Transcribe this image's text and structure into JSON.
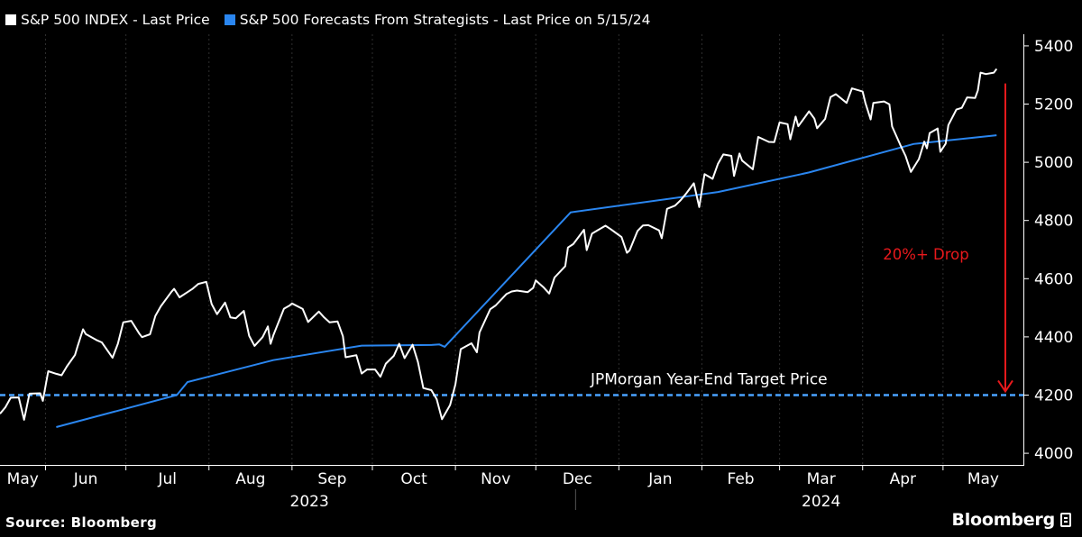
{
  "legend": {
    "items": [
      {
        "label": "S&P 500 INDEX - Last Price",
        "color": "#ffffff"
      },
      {
        "label": "S&P 500 Forecasts From Strategists - Last Price on 5/15/24",
        "color": "#2a86f0"
      }
    ]
  },
  "chart_data": {
    "type": "line",
    "x_axis": {
      "months": [
        "May",
        "Jun",
        "Jul",
        "Aug",
        "Sep",
        "Oct",
        "Nov",
        "Dec",
        "Jan",
        "Feb",
        "Mar",
        "Apr",
        "May"
      ],
      "years": [
        "2023",
        "2024"
      ],
      "range": [
        "2023-05-15",
        "2024-05-31"
      ]
    },
    "y_axis": {
      "ticks": [
        4000,
        4200,
        4400,
        4600,
        4800,
        5000,
        5200,
        5400
      ],
      "ylim": [
        3960,
        5440
      ],
      "position": "right"
    },
    "grid": "vertical dashed",
    "legend_position": "top-left",
    "series": [
      {
        "name": "S&P 500 INDEX - Last Price",
        "color": "#ffffff",
        "points": [
          [
            "2023-05-15",
            4136
          ],
          [
            "2023-05-17",
            4158
          ],
          [
            "2023-05-19",
            4191
          ],
          [
            "2023-05-22",
            4192
          ],
          [
            "2023-05-24",
            4115
          ],
          [
            "2023-05-26",
            4205
          ],
          [
            "2023-05-30",
            4206
          ],
          [
            "2023-05-31",
            4180
          ],
          [
            "2023-06-02",
            4282
          ],
          [
            "2023-06-05",
            4273
          ],
          [
            "2023-06-07",
            4268
          ],
          [
            "2023-06-09",
            4299
          ],
          [
            "2023-06-12",
            4338
          ],
          [
            "2023-06-13",
            4369
          ],
          [
            "2023-06-15",
            4426
          ],
          [
            "2023-06-16",
            4410
          ],
          [
            "2023-06-20",
            4389
          ],
          [
            "2023-06-22",
            4381
          ],
          [
            "2023-06-26",
            4328
          ],
          [
            "2023-06-28",
            4376
          ],
          [
            "2023-06-30",
            4450
          ],
          [
            "2023-07-03",
            4455
          ],
          [
            "2023-07-06",
            4411
          ],
          [
            "2023-07-07",
            4399
          ],
          [
            "2023-07-10",
            4409
          ],
          [
            "2023-07-12",
            4472
          ],
          [
            "2023-07-14",
            4505
          ],
          [
            "2023-07-18",
            4555
          ],
          [
            "2023-07-19",
            4565
          ],
          [
            "2023-07-21",
            4536
          ],
          [
            "2023-07-24",
            4554
          ],
          [
            "2023-07-26",
            4566
          ],
          [
            "2023-07-28",
            4582
          ],
          [
            "2023-07-31",
            4589
          ],
          [
            "2023-08-02",
            4513
          ],
          [
            "2023-08-04",
            4478
          ],
          [
            "2023-08-07",
            4518
          ],
          [
            "2023-08-09",
            4467
          ],
          [
            "2023-08-11",
            4464
          ],
          [
            "2023-08-14",
            4489
          ],
          [
            "2023-08-16",
            4404
          ],
          [
            "2023-08-18",
            4369
          ],
          [
            "2023-08-21",
            4399
          ],
          [
            "2023-08-23",
            4436
          ],
          [
            "2023-08-24",
            4376
          ],
          [
            "2023-08-25",
            4405
          ],
          [
            "2023-08-29",
            4497
          ],
          [
            "2023-08-31",
            4507
          ],
          [
            "2023-09-01",
            4515
          ],
          [
            "2023-09-05",
            4496
          ],
          [
            "2023-09-07",
            4451
          ],
          [
            "2023-09-11",
            4487
          ],
          [
            "2023-09-13",
            4467
          ],
          [
            "2023-09-15",
            4450
          ],
          [
            "2023-09-18",
            4453
          ],
          [
            "2023-09-20",
            4402
          ],
          [
            "2023-09-21",
            4330
          ],
          [
            "2023-09-25",
            4337
          ],
          [
            "2023-09-27",
            4274
          ],
          [
            "2023-09-29",
            4288
          ],
          [
            "2023-10-02",
            4288
          ],
          [
            "2023-10-04",
            4263
          ],
          [
            "2023-10-06",
            4308
          ],
          [
            "2023-10-09",
            4335
          ],
          [
            "2023-10-11",
            4376
          ],
          [
            "2023-10-13",
            4327
          ],
          [
            "2023-10-16",
            4373
          ],
          [
            "2023-10-18",
            4314
          ],
          [
            "2023-10-20",
            4224
          ],
          [
            "2023-10-23",
            4217
          ],
          [
            "2023-10-25",
            4186
          ],
          [
            "2023-10-27",
            4117
          ],
          [
            "2023-10-30",
            4166
          ],
          [
            "2023-11-01",
            4237
          ],
          [
            "2023-11-03",
            4358
          ],
          [
            "2023-11-07",
            4378
          ],
          [
            "2023-11-09",
            4347
          ],
          [
            "2023-11-10",
            4415
          ],
          [
            "2023-11-14",
            4495
          ],
          [
            "2023-11-16",
            4508
          ],
          [
            "2023-11-20",
            4547
          ],
          [
            "2023-11-22",
            4556
          ],
          [
            "2023-11-24",
            4559
          ],
          [
            "2023-11-28",
            4554
          ],
          [
            "2023-11-30",
            4568
          ],
          [
            "2023-12-01",
            4594
          ],
          [
            "2023-12-04",
            4569
          ],
          [
            "2023-12-06",
            4549
          ],
          [
            "2023-12-08",
            4604
          ],
          [
            "2023-12-12",
            4643
          ],
          [
            "2023-12-13",
            4707
          ],
          [
            "2023-12-15",
            4719
          ],
          [
            "2023-12-19",
            4768
          ],
          [
            "2023-12-20",
            4698
          ],
          [
            "2023-12-22",
            4755
          ],
          [
            "2023-12-27",
            4782
          ],
          [
            "2023-12-29",
            4770
          ],
          [
            "2024-01-02",
            4743
          ],
          [
            "2024-01-04",
            4689
          ],
          [
            "2024-01-05",
            4697
          ],
          [
            "2024-01-08",
            4764
          ],
          [
            "2024-01-10",
            4783
          ],
          [
            "2024-01-12",
            4784
          ],
          [
            "2024-01-16",
            4766
          ],
          [
            "2024-01-17",
            4739
          ],
          [
            "2024-01-19",
            4840
          ],
          [
            "2024-01-22",
            4851
          ],
          [
            "2024-01-24",
            4869
          ],
          [
            "2024-01-26",
            4891
          ],
          [
            "2024-01-29",
            4928
          ],
          [
            "2024-01-31",
            4846
          ],
          [
            "2024-02-01",
            4906
          ],
          [
            "2024-02-02",
            4959
          ],
          [
            "2024-02-05",
            4943
          ],
          [
            "2024-02-07",
            4995
          ],
          [
            "2024-02-09",
            5027
          ],
          [
            "2024-02-12",
            5022
          ],
          [
            "2024-02-13",
            4953
          ],
          [
            "2024-02-15",
            5030
          ],
          [
            "2024-02-16",
            5006
          ],
          [
            "2024-02-20",
            4976
          ],
          [
            "2024-02-22",
            5087
          ],
          [
            "2024-02-26",
            5070
          ],
          [
            "2024-02-28",
            5069
          ],
          [
            "2024-03-01",
            5137
          ],
          [
            "2024-03-04",
            5131
          ],
          [
            "2024-03-05",
            5079
          ],
          [
            "2024-03-07",
            5157
          ],
          [
            "2024-03-08",
            5124
          ],
          [
            "2024-03-12",
            5175
          ],
          [
            "2024-03-14",
            5150
          ],
          [
            "2024-03-15",
            5117
          ],
          [
            "2024-03-18",
            5149
          ],
          [
            "2024-03-20",
            5224
          ],
          [
            "2024-03-22",
            5234
          ],
          [
            "2024-03-26",
            5204
          ],
          [
            "2024-03-28",
            5254
          ],
          [
            "2024-04-01",
            5243
          ],
          [
            "2024-04-02",
            5205
          ],
          [
            "2024-04-04",
            5147
          ],
          [
            "2024-04-05",
            5204
          ],
          [
            "2024-04-09",
            5209
          ],
          [
            "2024-04-11",
            5199
          ],
          [
            "2024-04-12",
            5123
          ],
          [
            "2024-04-15",
            5061
          ],
          [
            "2024-04-17",
            5022
          ],
          [
            "2024-04-19",
            4967
          ],
          [
            "2024-04-22",
            5011
          ],
          [
            "2024-04-24",
            5071
          ],
          [
            "2024-04-25",
            5048
          ],
          [
            "2024-04-26",
            5100
          ],
          [
            "2024-04-29",
            5116
          ],
          [
            "2024-04-30",
            5036
          ],
          [
            "2024-05-02",
            5064
          ],
          [
            "2024-05-03",
            5128
          ],
          [
            "2024-05-06",
            5181
          ],
          [
            "2024-05-08",
            5187
          ],
          [
            "2024-05-10",
            5223
          ],
          [
            "2024-05-13",
            5221
          ],
          [
            "2024-05-14",
            5247
          ],
          [
            "2024-05-15",
            5308
          ],
          [
            "2024-05-17",
            5303
          ],
          [
            "2024-05-20",
            5308
          ],
          [
            "2024-05-21",
            5321
          ]
        ]
      },
      {
        "name": "S&P 500 Forecasts From Strategists - Last Price on 5/15/24",
        "color": "#2a86f0",
        "points": [
          [
            "2023-06-05",
            4090
          ],
          [
            "2023-07-20",
            4200
          ],
          [
            "2023-07-24",
            4245
          ],
          [
            "2023-08-25",
            4320
          ],
          [
            "2023-09-27",
            4370
          ],
          [
            "2023-10-23",
            4372
          ],
          [
            "2023-10-26",
            4374
          ],
          [
            "2023-10-28",
            4366
          ],
          [
            "2023-12-14",
            4828
          ],
          [
            "2024-02-07",
            4898
          ],
          [
            "2024-03-12",
            4965
          ],
          [
            "2024-04-20",
            5063
          ],
          [
            "2024-05-21",
            5093
          ]
        ]
      }
    ],
    "annotations": {
      "target_label": "JPMorgan Year-End Target Price",
      "target_value": 4200,
      "target_color": "#4aa3ff",
      "drop_label": "20%+ Drop",
      "drop_from": 5271,
      "drop_to": 4200,
      "drop_color": "#e8191c"
    }
  },
  "footer": {
    "source": "Source: Bloomberg",
    "brand": "Bloomberg"
  }
}
